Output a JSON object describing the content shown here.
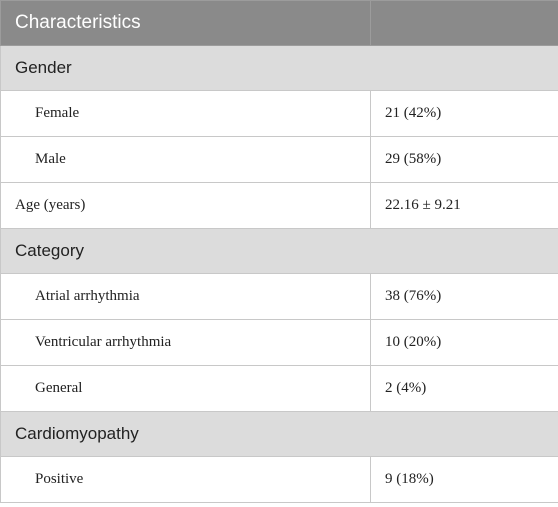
{
  "table": {
    "header": [
      "Characteristics",
      ""
    ],
    "rows": [
      {
        "kind": "section",
        "label": "Gender"
      },
      {
        "kind": "data",
        "label": "Female",
        "value": "21 (42%)",
        "indent": true
      },
      {
        "kind": "data",
        "label": "Male",
        "value": "29 (58%)",
        "indent": true
      },
      {
        "kind": "data",
        "label": "Age (years)",
        "value": "22.16 ± 9.21",
        "indent": false
      },
      {
        "kind": "section",
        "label": "Category"
      },
      {
        "kind": "data",
        "label": "Atrial arrhythmia",
        "value": "38 (76%)",
        "indent": true
      },
      {
        "kind": "data",
        "label": "Ventricular arrhythmia",
        "value": "10 (20%)",
        "indent": true
      },
      {
        "kind": "data",
        "label": "General",
        "value": "2 (4%)",
        "indent": true
      },
      {
        "kind": "section",
        "label": "Cardiomyopathy"
      },
      {
        "kind": "data",
        "label": "Positive",
        "value": "9 (18%)",
        "indent": true
      }
    ]
  }
}
